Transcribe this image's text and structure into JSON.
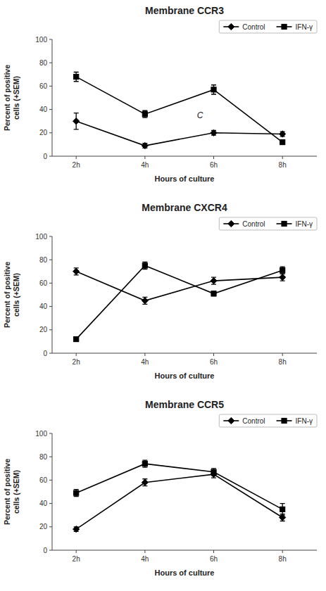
{
  "chart_data": [
    {
      "type": "line",
      "title": "Membrane CCR3",
      "xlabel": "Hours of culture",
      "ylabel": "Percent of positive\ncells (+SEM)",
      "x": [
        2,
        4,
        6,
        8
      ],
      "xlim": [
        1.3,
        9
      ],
      "xticks": [
        {
          "value": 2,
          "label": "2h"
        },
        {
          "value": 4,
          "label": "4h"
        },
        {
          "value": 6,
          "label": "6h"
        },
        {
          "value": 8,
          "label": "8h"
        }
      ],
      "ylim": [
        0,
        100
      ],
      "yticks": [
        0,
        20,
        40,
        60,
        80,
        100
      ],
      "grid": false,
      "legend": "upper right",
      "series": [
        {
          "name": "Control",
          "color": "#000000",
          "marker": "diamond",
          "values": [
            30,
            9,
            20,
            19
          ],
          "errors": [
            7,
            2,
            2,
            2
          ]
        },
        {
          "name": "IFN-γ",
          "color": "#000000",
          "marker": "square",
          "values": [
            68,
            36,
            57,
            12
          ],
          "errors": [
            4,
            3,
            4,
            2
          ]
        }
      ],
      "annotations": [
        {
          "text": "C",
          "x": 5.6,
          "y": 35
        }
      ]
    },
    {
      "type": "line",
      "title": "Membrane CXCR4",
      "xlabel": "Hours of culture",
      "ylabel": "Percent of positive\ncells (+SEM)",
      "x": [
        2,
        4,
        6,
        8
      ],
      "xlim": [
        1.3,
        9
      ],
      "xticks": [
        {
          "value": 2,
          "label": "2h"
        },
        {
          "value": 4,
          "label": "4h"
        },
        {
          "value": 6,
          "label": "6h"
        },
        {
          "value": 8,
          "label": "8h"
        }
      ],
      "ylim": [
        0,
        100
      ],
      "yticks": [
        0,
        20,
        40,
        60,
        80,
        100
      ],
      "grid": false,
      "legend": "upper right",
      "series": [
        {
          "name": "Control",
          "color": "#000000",
          "marker": "diamond",
          "values": [
            70,
            45,
            62,
            65
          ],
          "errors": [
            3,
            3,
            3,
            3
          ]
        },
        {
          "name": "IFN-γ",
          "color": "#000000",
          "marker": "square",
          "values": [
            12,
            75,
            51,
            71
          ],
          "errors": [
            2,
            3,
            2,
            3
          ]
        }
      ]
    },
    {
      "type": "line",
      "title": "Membrane CCR5",
      "xlabel": "Hours of culture",
      "ylabel": "Percent of positive\ncells (+SEM)",
      "x": [
        2,
        4,
        6,
        8
      ],
      "xlim": [
        1.3,
        9
      ],
      "xticks": [
        {
          "value": 2,
          "label": "2h"
        },
        {
          "value": 4,
          "label": "4h"
        },
        {
          "value": 6,
          "label": "6h"
        },
        {
          "value": 8,
          "label": "8h"
        }
      ],
      "ylim": [
        0,
        100
      ],
      "yticks": [
        0,
        20,
        40,
        60,
        80,
        100
      ],
      "grid": false,
      "legend": "upper right",
      "series": [
        {
          "name": "Control",
          "color": "#000000",
          "marker": "diamond",
          "values": [
            18,
            58,
            65,
            28
          ],
          "errors": [
            2,
            3,
            3,
            3
          ]
        },
        {
          "name": "IFN-γ",
          "color": "#000000",
          "marker": "square",
          "values": [
            49,
            74,
            67,
            35
          ],
          "errors": [
            3,
            3,
            3,
            5
          ]
        }
      ]
    }
  ]
}
